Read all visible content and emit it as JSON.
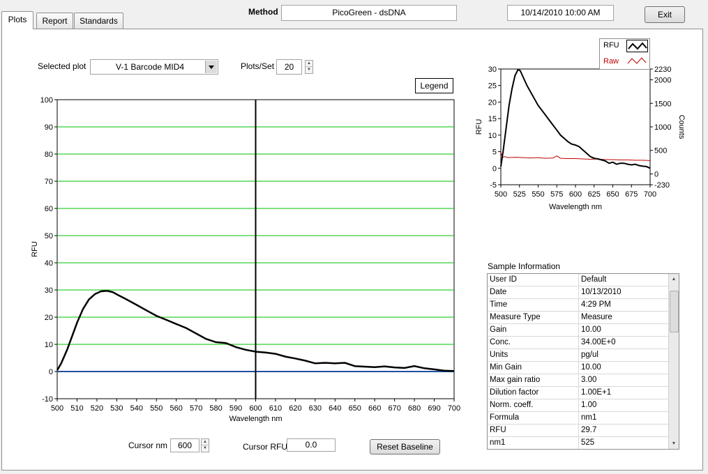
{
  "tabs": [
    {
      "label": "Plots",
      "active": true
    },
    {
      "label": "Report",
      "active": false
    },
    {
      "label": "Standards",
      "active": false
    }
  ],
  "header": {
    "method_label": "Method",
    "method_value": "PicoGreen - dsDNA",
    "datetime": "10/14/2010  10:00 AM",
    "exit_label": "Exit"
  },
  "controls": {
    "selected_plot_label": "Selected plot",
    "selected_plot_value": "V-1 Barcode MID4",
    "plots_per_set_label": "Plots/Set",
    "plots_per_set_value": "20",
    "legend_button": "Legend",
    "cursor_nm_label": "Cursor nm",
    "cursor_nm_value": "600",
    "cursor_rfu_label": "Cursor RFU",
    "cursor_rfu_value": "0.0",
    "reset_baseline_label": "Reset Baseline"
  },
  "chart_data": [
    {
      "type": "line",
      "xlabel": "Wavelength nm",
      "ylabel": "RFU",
      "xlim": [
        500,
        700
      ],
      "ylim": [
        -10,
        100
      ],
      "xticks": [
        "500",
        "510",
        "520",
        "530",
        "540",
        "550",
        "560",
        "570",
        "580",
        "590",
        "600",
        "610",
        "620",
        "630",
        "640",
        "650",
        "660",
        "670",
        "680",
        "690",
        "700"
      ],
      "yticks": [
        "-10",
        "0",
        "10",
        "20",
        "30",
        "40",
        "50",
        "60",
        "70",
        "80",
        "90",
        "100"
      ],
      "grid": "horizontal",
      "grid_color": "#00c000",
      "cursor_x": 600,
      "series": [
        {
          "color": "#000000",
          "x": [
            500,
            502,
            505,
            508,
            510,
            513,
            516,
            519,
            522,
            525,
            528,
            531,
            535,
            540,
            545,
            550,
            555,
            560,
            565,
            570,
            575,
            580,
            585,
            590,
            595,
            600,
            605,
            610,
            615,
            620,
            625,
            630,
            635,
            640,
            645,
            650,
            655,
            660,
            665,
            670,
            675,
            680,
            685,
            690,
            695,
            700
          ],
          "y": [
            0.5,
            3,
            8,
            14,
            18,
            23,
            26.5,
            28.5,
            29.5,
            29.7,
            29.2,
            28,
            26.5,
            24.5,
            22.5,
            20.5,
            19,
            17.5,
            16,
            14,
            12,
            10.8,
            10.5,
            9,
            8,
            7.3,
            7,
            6.5,
            5.5,
            4.8,
            4,
            3,
            3.2,
            3,
            3.2,
            2,
            1.8,
            1.6,
            1.9,
            1.5,
            1.3,
            2,
            1.2,
            0.8,
            0.3,
            0.2
          ]
        },
        {
          "color": "#1f4fa0",
          "x": [
            500,
            700
          ],
          "y": [
            0,
            0
          ]
        }
      ]
    },
    {
      "type": "line",
      "xlabel": "Wavelength  nm",
      "ylabel": "RFU",
      "y2label": "Counts",
      "xlim": [
        500,
        700
      ],
      "ylim": [
        -5,
        30
      ],
      "y2lim": [
        -230,
        2230
      ],
      "xticks": [
        "500",
        "525",
        "550",
        "575",
        "600",
        "625",
        "650",
        "675",
        "700"
      ],
      "yticks": [
        "-5",
        "0",
        "5",
        "10",
        "15",
        "20",
        "25",
        "30"
      ],
      "y2ticks": [
        "-230",
        "0",
        "500",
        "1000",
        "1500",
        "2000",
        "2230"
      ],
      "legend": {
        "placement": "top-right",
        "entries": [
          {
            "label": "RFU",
            "color": "#000000"
          },
          {
            "label": "Raw",
            "color": "#c00000"
          }
        ]
      },
      "series": [
        {
          "name": "RFU",
          "color": "#000000",
          "x": [
            500,
            503,
            507,
            511,
            515,
            519,
            523,
            526,
            530,
            535,
            540,
            545,
            550,
            555,
            560,
            565,
            570,
            575,
            580,
            585,
            590,
            595,
            600,
            605,
            610,
            615,
            620,
            625,
            630,
            635,
            640,
            645,
            650,
            655,
            660,
            665,
            670,
            675,
            680,
            685,
            690,
            695,
            700
          ],
          "y": [
            0.5,
            5,
            12,
            19,
            24,
            28,
            29.8,
            29.5,
            27.5,
            25,
            23,
            21,
            19,
            17.5,
            16,
            14.5,
            13,
            11.5,
            10,
            9,
            8,
            7.3,
            7,
            6.5,
            5.5,
            4.5,
            3.5,
            3,
            2.8,
            2.5,
            2.2,
            1.5,
            1.8,
            1.2,
            1.5,
            1.5,
            1.2,
            1,
            1.2,
            0.8,
            0.6,
            0.5,
            0
          ]
        },
        {
          "name": "Raw",
          "color": "#c00000",
          "x": [
            500,
            502,
            505,
            510,
            520,
            530,
            540,
            550,
            560,
            570,
            575,
            580,
            590,
            600,
            610,
            620,
            630,
            640,
            650,
            660,
            670,
            680,
            690,
            700
          ],
          "y": [
            5,
            3.2,
            3.5,
            3.2,
            3.3,
            3.2,
            3.1,
            3.2,
            3,
            3.1,
            3.7,
            3,
            2.9,
            2.9,
            2.8,
            2.7,
            2.8,
            2.6,
            2.6,
            2.5,
            2.5,
            2.4,
            2.4,
            2.3
          ]
        }
      ]
    }
  ],
  "sample_info": {
    "title": "Sample Information",
    "rows": [
      [
        "User ID",
        "Default"
      ],
      [
        "Date",
        "10/13/2010"
      ],
      [
        "Time",
        "4:29 PM"
      ],
      [
        "Measure Type",
        "Measure"
      ],
      [
        "Gain",
        "10.00"
      ],
      [
        "Conc.",
        "34.00E+0"
      ],
      [
        "Units",
        "pg/ul"
      ],
      [
        "Min Gain",
        "10.00"
      ],
      [
        "Max gain ratio",
        "3.00"
      ],
      [
        "Dilution factor",
        "1.00E+1"
      ],
      [
        "Norm. coeff.",
        "1.00"
      ],
      [
        "Formula",
        "nm1"
      ],
      [
        "RFU",
        "29.7"
      ],
      [
        "nm1",
        "525"
      ]
    ]
  }
}
